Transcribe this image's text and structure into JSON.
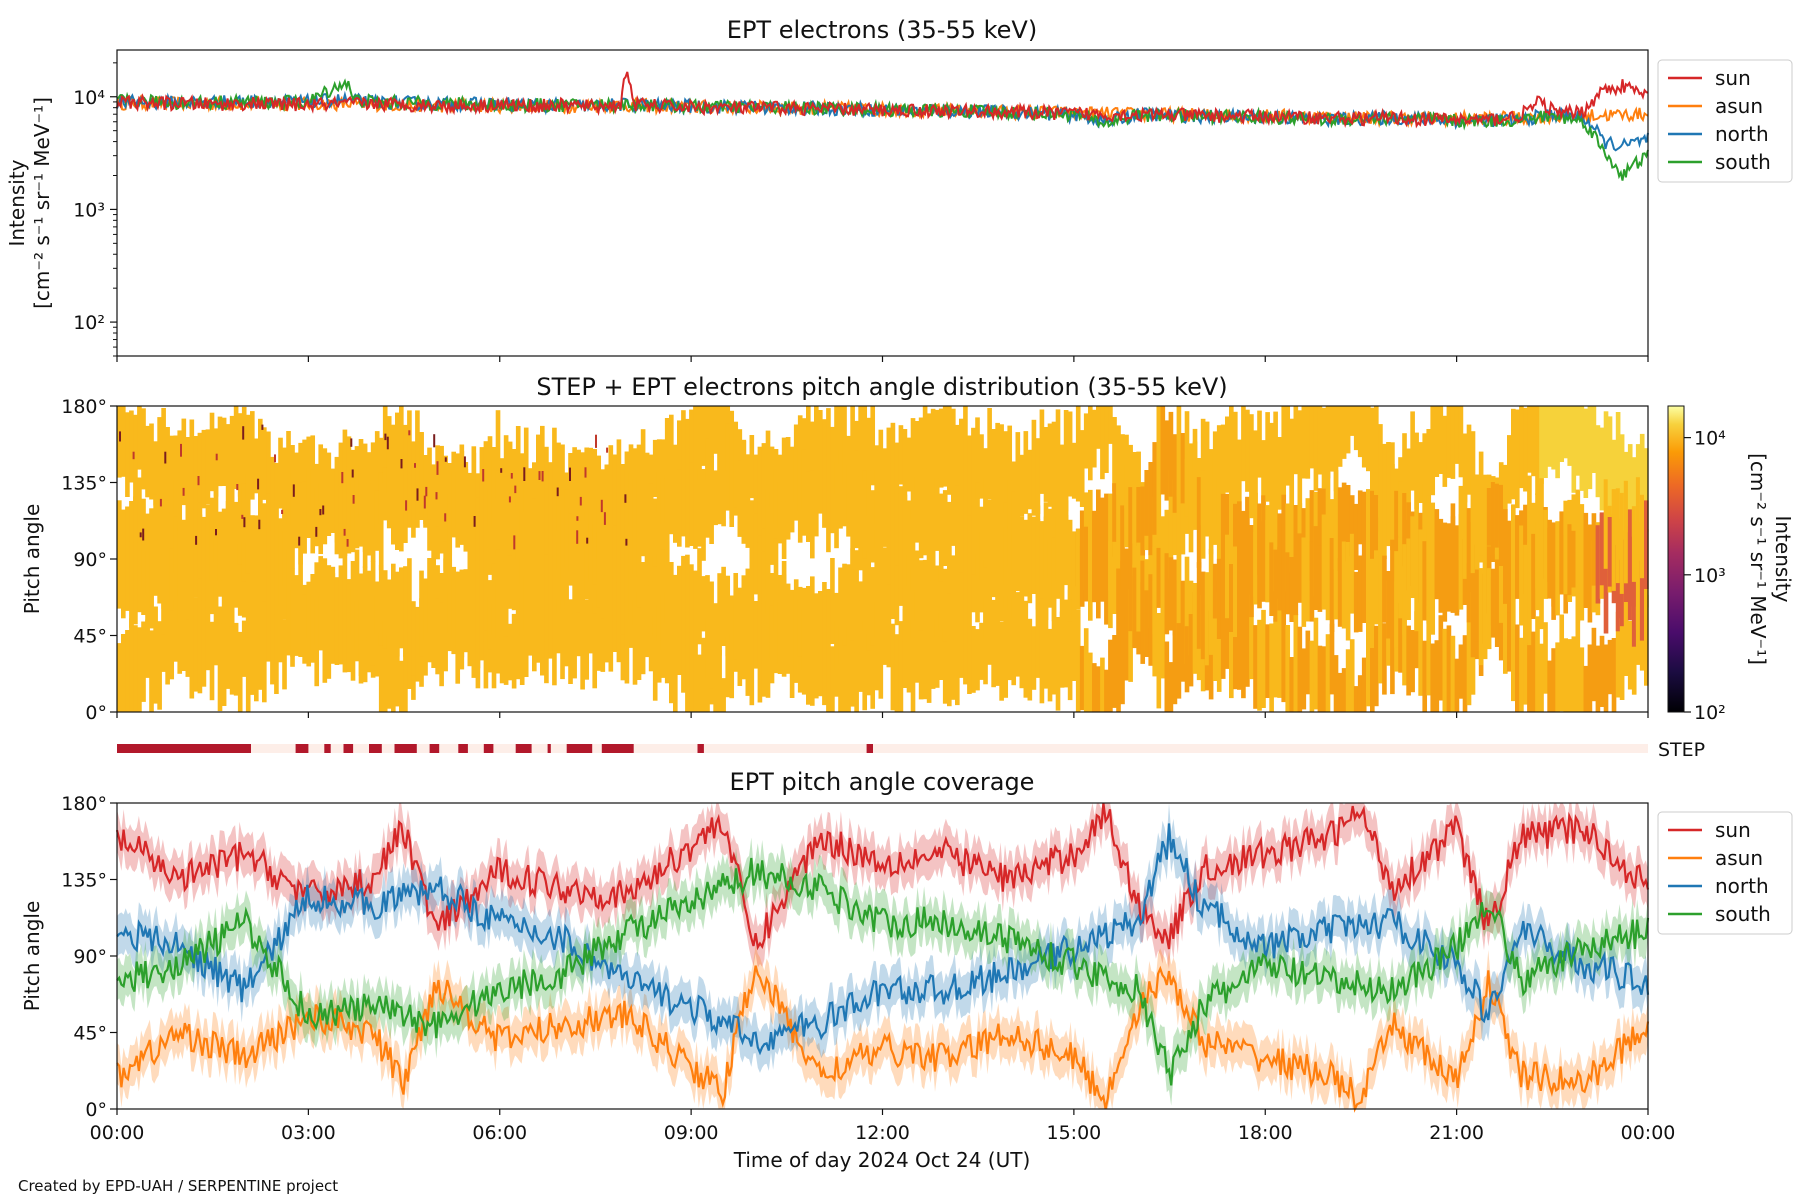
{
  "figure_title": "",
  "credit": "Created by EPD-UAH / SERPENTINE project",
  "colors": {
    "sun": "#d62728",
    "asun": "#ff7f0e",
    "north": "#1f77b4",
    "south": "#2ca02c",
    "step_bar": "#b2182b",
    "step_bg": "#fdeee8"
  },
  "x_axis": {
    "label": "Time of day 2024 Oct 24 (UT)",
    "ticks": [
      "00:00",
      "03:00",
      "06:00",
      "09:00",
      "12:00",
      "15:00",
      "18:00",
      "21:00",
      "00:00"
    ]
  },
  "step_label": "STEP",
  "chart_data": [
    {
      "type": "line",
      "title": "EPT electrons (35-55 keV)",
      "ylabel": [
        "Intensity",
        "[cm⁻² s⁻¹ sr⁻¹ MeV⁻¹]"
      ],
      "yscale": "log",
      "ylim": [
        50,
        26000
      ],
      "yticks": [
        "10²",
        "10³",
        "10⁴"
      ],
      "xlim_hours": [
        0,
        24
      ],
      "legend": "outside-right",
      "series": [
        {
          "name": "sun",
          "color": "#d62728",
          "x": [
            0,
            0.5,
            1,
            1.5,
            2,
            2.5,
            3,
            3.5,
            4,
            4.5,
            5,
            5.5,
            6,
            6.5,
            7,
            7.5,
            7.9,
            8.0,
            8.1,
            8.5,
            9,
            9.5,
            10,
            10.5,
            11,
            11.5,
            12,
            12.5,
            13,
            13.5,
            14,
            14.5,
            15,
            15.5,
            16,
            16.5,
            17,
            17.5,
            18,
            18.5,
            19,
            19.5,
            20,
            20.5,
            21,
            21.5,
            22,
            22.3,
            22.6,
            23,
            23.3,
            23.6,
            24
          ],
          "y": [
            9000,
            8800,
            8700,
            8600,
            8700,
            8600,
            8500,
            8600,
            8700,
            8500,
            8400,
            8300,
            8500,
            8300,
            8400,
            8200,
            8500,
            17500,
            8500,
            8300,
            8100,
            8000,
            7900,
            8000,
            7800,
            7700,
            7600,
            7600,
            7500,
            7400,
            7300,
            7200,
            7100,
            7000,
            6900,
            6900,
            6800,
            6700,
            6700,
            6600,
            6500,
            6400,
            6500,
            6300,
            6300,
            6200,
            6800,
            9000,
            7000,
            7500,
            11500,
            12500,
            10000
          ]
        },
        {
          "name": "asun",
          "color": "#ff7f0e",
          "x": [
            0,
            1,
            2,
            3,
            4,
            5,
            6,
            7,
            8,
            9,
            10,
            11,
            12,
            13,
            14,
            15,
            16,
            17,
            18,
            19,
            20,
            21,
            22,
            23,
            24
          ],
          "y": [
            8800,
            8700,
            8600,
            8700,
            8600,
            8300,
            8300,
            8200,
            8400,
            8100,
            8000,
            7900,
            7700,
            7500,
            7300,
            7200,
            7000,
            6900,
            6800,
            6600,
            6500,
            6400,
            6500,
            6800,
            7000
          ]
        },
        {
          "name": "north",
          "color": "#1f77b4",
          "x": [
            0,
            1,
            2,
            3,
            3.5,
            4,
            5,
            6,
            7,
            8,
            9,
            10,
            11,
            12,
            13,
            14,
            15,
            15.5,
            16,
            17,
            18,
            19,
            20,
            21,
            22,
            22.5,
            23,
            23.3,
            23.6,
            24
          ],
          "y": [
            9000,
            8900,
            9100,
            9000,
            9400,
            9000,
            8700,
            8600,
            8300,
            8500,
            8200,
            8100,
            7900,
            7700,
            7500,
            7300,
            6900,
            6000,
            7000,
            6700,
            6600,
            6300,
            6500,
            6200,
            6200,
            7000,
            6500,
            4000,
            3600,
            4200
          ]
        },
        {
          "name": "south",
          "color": "#2ca02c",
          "x": [
            0,
            1,
            2,
            3,
            3.6,
            3.7,
            4,
            5,
            6,
            7,
            8,
            9,
            10,
            11,
            12,
            13,
            14,
            15,
            15.5,
            16,
            17,
            18,
            19,
            20,
            21,
            22,
            22.5,
            23,
            23.3,
            23.6,
            24
          ],
          "y": [
            9100,
            8900,
            9000,
            8900,
            13500,
            9500,
            9000,
            8700,
            8500,
            8400,
            8500,
            8200,
            8100,
            7900,
            7700,
            7500,
            7300,
            7000,
            5800,
            6900,
            6700,
            6600,
            6300,
            6500,
            6100,
            6200,
            6800,
            6000,
            3200,
            2000,
            3000
          ]
        }
      ]
    },
    {
      "type": "heatmap",
      "title": "STEP + EPT electrons pitch angle distribution (35-55 keV)",
      "ylabel": "Pitch angle",
      "yticks": [
        "0°",
        "45°",
        "90°",
        "135°",
        "180°"
      ],
      "ylim": [
        0,
        180
      ],
      "xlim_hours": [
        0,
        24
      ],
      "colorbar": {
        "label": [
          "Intensity",
          "[cm⁻² s⁻¹ sr⁻¹ MeV⁻¹]"
        ],
        "scale": "log",
        "range": [
          100,
          17000
        ],
        "ticks": [
          "10²",
          "10³",
          "10⁴"
        ],
        "colormap": "inferno"
      },
      "typical_intensity": 7000
    },
    {
      "type": "line",
      "title": "EPT pitch angle coverage",
      "ylabel": "Pitch angle",
      "yticks": [
        "0°",
        "45°",
        "90°",
        "135°",
        "180°"
      ],
      "ylim": [
        0,
        180
      ],
      "xlim_hours": [
        0,
        24
      ],
      "legend": "outside-right",
      "band_halfwidth_deg": 12,
      "series": [
        {
          "name": "sun",
          "color": "#d62728",
          "x": [
            0,
            1,
            2,
            3,
            4,
            4.5,
            5,
            6,
            7,
            8,
            9,
            9.5,
            10,
            11,
            12,
            13,
            14,
            15,
            15.5,
            16,
            16.5,
            17,
            18,
            19,
            19.5,
            20,
            21,
            21.5,
            22,
            23,
            24
          ],
          "y": [
            160,
            135,
            150,
            125,
            135,
            165,
            105,
            140,
            130,
            125,
            155,
            170,
            95,
            160,
            145,
            150,
            135,
            150,
            175,
            120,
            100,
            140,
            150,
            160,
            175,
            130,
            165,
            105,
            160,
            165,
            130
          ]
        },
        {
          "name": "asun",
          "color": "#ff7f0e",
          "x": [
            0,
            1,
            2,
            3,
            4,
            4.5,
            5,
            6,
            7,
            8,
            9,
            9.5,
            10,
            11,
            12,
            13,
            14,
            15,
            15.5,
            16,
            16.5,
            17,
            18,
            19,
            19.5,
            20,
            21,
            21.5,
            22,
            23,
            24
          ],
          "y": [
            20,
            45,
            30,
            55,
            45,
            15,
            75,
            40,
            50,
            55,
            25,
            10,
            85,
            20,
            35,
            30,
            45,
            30,
            5,
            60,
            80,
            40,
            30,
            20,
            5,
            50,
            15,
            75,
            20,
            15,
            50
          ]
        },
        {
          "name": "north",
          "color": "#1f77b4",
          "x": [
            0,
            1,
            2,
            3,
            4,
            5,
            6,
            7,
            8,
            9,
            10,
            11,
            12,
            13,
            14,
            15,
            16,
            16.5,
            17,
            18,
            19,
            20,
            21,
            21.5,
            22,
            23,
            24
          ],
          "y": [
            105,
            95,
            70,
            125,
            120,
            130,
            110,
            100,
            75,
            60,
            40,
            50,
            70,
            70,
            80,
            95,
            110,
            160,
            120,
            95,
            105,
            110,
            85,
            55,
            105,
            85,
            75
          ]
        },
        {
          "name": "south",
          "color": "#2ca02c",
          "x": [
            0,
            1,
            2,
            3,
            4,
            5,
            6,
            7,
            8,
            9,
            10,
            11,
            12,
            13,
            14,
            15,
            16,
            16.5,
            17,
            18,
            19,
            20,
            21,
            21.5,
            22,
            23,
            24
          ],
          "y": [
            75,
            85,
            110,
            55,
            60,
            50,
            70,
            80,
            105,
            120,
            140,
            130,
            110,
            110,
            100,
            85,
            70,
            20,
            60,
            85,
            75,
            70,
            95,
            125,
            75,
            95,
            105
          ]
        }
      ]
    }
  ],
  "step_segments_hours": [
    [
      0,
      2.1
    ],
    [
      2.8,
      3.0
    ],
    [
      3.25,
      3.35
    ],
    [
      3.55,
      3.7
    ],
    [
      3.95,
      4.15
    ],
    [
      4.35,
      4.7
    ],
    [
      4.9,
      5.05
    ],
    [
      5.35,
      5.5
    ],
    [
      5.75,
      5.9
    ],
    [
      6.25,
      6.5
    ],
    [
      6.75,
      6.8
    ],
    [
      7.05,
      7.45
    ],
    [
      7.6,
      8.1
    ],
    [
      9.1,
      9.2
    ],
    [
      11.75,
      11.85
    ]
  ]
}
